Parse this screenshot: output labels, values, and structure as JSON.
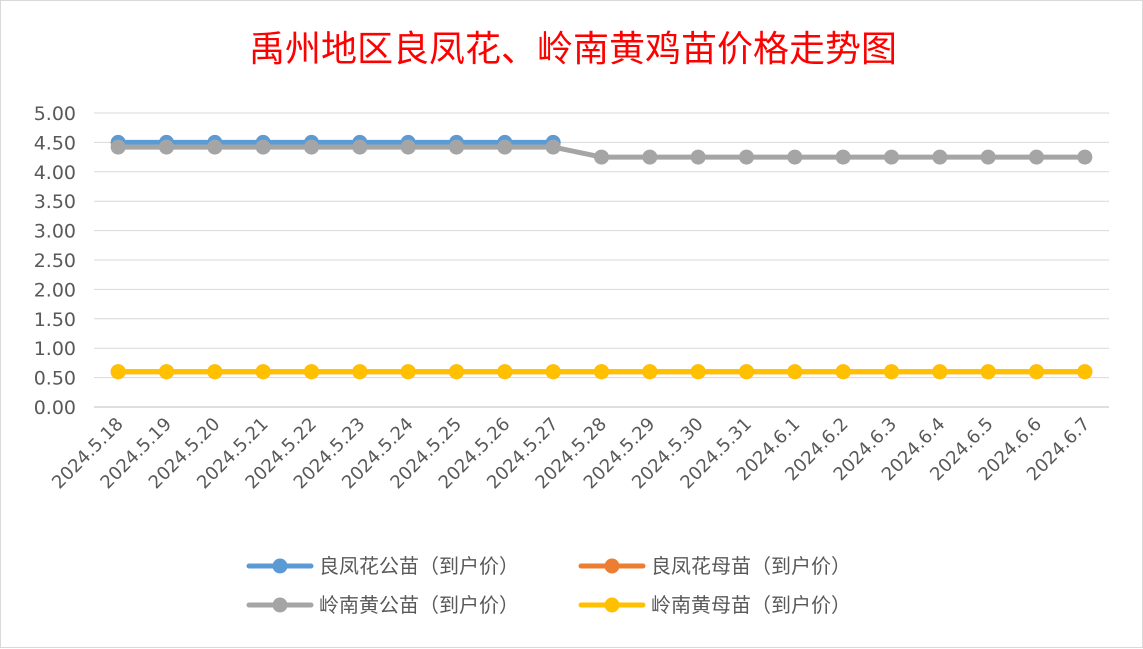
{
  "chart_data": {
    "type": "line",
    "title": "禹州地区良凤花、岭南黄鸡苗价格走势图",
    "xlabel": "",
    "ylabel": "",
    "ylim": [
      0,
      5
    ],
    "ytick_step": 0.5,
    "ytick_format": "0.00",
    "grid": true,
    "legend_position": "bottom",
    "categories": [
      "2024.5.18",
      "2024.5.19",
      "2024.5.20",
      "2024.5.21",
      "2024.5.22",
      "2024.5.23",
      "2024.5.24",
      "2024.5.25",
      "2024.5.26",
      "2024.5.27",
      "2024.5.28",
      "2024.5.29",
      "2024.5.30",
      "2024.5.31",
      "2024.6.1",
      "2024.6.2",
      "2024.6.3",
      "2024.6.4",
      "2024.6.5",
      "2024.6.6",
      "2024.6.7"
    ],
    "series": [
      {
        "name": "良凤花公苗（到户价）",
        "color": "#5b9bd5",
        "values": [
          4.5,
          4.5,
          4.5,
          4.5,
          4.5,
          4.5,
          4.5,
          4.5,
          4.5,
          4.5,
          null,
          null,
          null,
          null,
          null,
          null,
          null,
          null,
          null,
          null,
          null
        ]
      },
      {
        "name": "良凤花母苗（到户价）",
        "color": "#ed7d31",
        "values": [
          0.6,
          0.6,
          0.6,
          0.6,
          0.6,
          0.6,
          0.6,
          0.6,
          0.6,
          0.6,
          0.6,
          0.6,
          0.6,
          0.6,
          0.6,
          0.6,
          0.6,
          0.6,
          0.6,
          0.6,
          0.6
        ]
      },
      {
        "name": "岭南黄公苗（到户价）",
        "color": "#a5a5a5",
        "values": [
          4.42,
          4.42,
          4.42,
          4.42,
          4.42,
          4.42,
          4.42,
          4.42,
          4.42,
          4.42,
          4.25,
          4.25,
          4.25,
          4.25,
          4.25,
          4.25,
          4.25,
          4.25,
          4.25,
          4.25,
          4.25
        ]
      },
      {
        "name": "岭南黄母苗（到户价）",
        "color": "#ffc000",
        "values": [
          0.6,
          0.6,
          0.6,
          0.6,
          0.6,
          0.6,
          0.6,
          0.6,
          0.6,
          0.6,
          0.6,
          0.6,
          0.6,
          0.6,
          0.6,
          0.6,
          0.6,
          0.6,
          0.6,
          0.6,
          0.6
        ]
      }
    ]
  }
}
